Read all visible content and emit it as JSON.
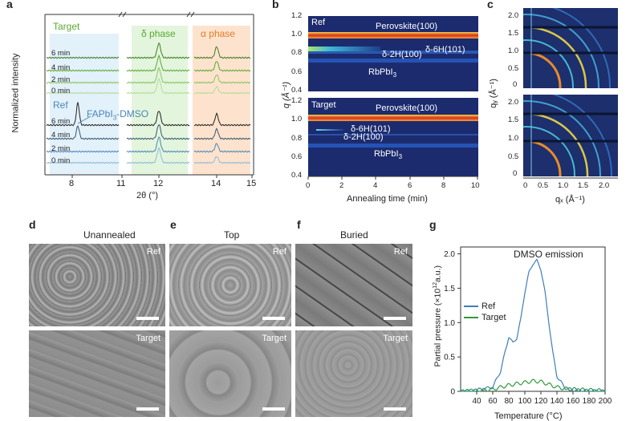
{
  "panels": {
    "a": "a",
    "b": "b",
    "c": "c",
    "d": "d",
    "e": "e",
    "f": "f",
    "g": "g"
  },
  "panel_a": {
    "target_label": "Target",
    "ref_label": "Ref",
    "delta_label": "δ phase",
    "alpha_label": "α phase",
    "fapbi_label": "FAPbI",
    "fapbi_sub": "3",
    "fapbi_suffix": "-DMSO",
    "ylabel": "Normalized intensity",
    "xlabel": "2θ (°)",
    "time_labels": [
      "6 min",
      "4 min",
      "2 min",
      "0 min"
    ],
    "xticks": [
      "8",
      "11",
      "12",
      "14",
      "15"
    ],
    "colors": {
      "target": "#5aa832",
      "ref": "#4a86b8",
      "delta_bg": "#e3f5dd",
      "alpha_bg": "#fde3cd",
      "blue_bg": "#e3f1fb",
      "alpha_text": "#e57b28",
      "delta_text": "#5aa832"
    }
  },
  "panel_b": {
    "ylabel": "q (Å⁻¹)",
    "xlabel": "Annealing time (min)",
    "xticks": [
      "0",
      "2",
      "4",
      "6",
      "8",
      "10"
    ],
    "yticks": [
      "1.2",
      "1.0",
      "0.8",
      "0.6",
      "0.4"
    ],
    "top": {
      "name": "Ref",
      "perovskite": "Perovskite(100)",
      "d6h": "δ-6H(101)",
      "d2h": "δ-2H(100)",
      "rbpbi_base": "RbPbI",
      "rbpbi_sub": "3"
    },
    "bottom": {
      "name": "Target",
      "perovskite": "Perovskite(100)",
      "d6h": "δ-6H(101)",
      "d2h": "δ-2H(100)",
      "rbpbi_base": "RbPbI",
      "rbpbi_sub": "3"
    }
  },
  "panel_c": {
    "ylabel": "qᵧ (Å⁻¹)",
    "xlabel": "qₓ (Å⁻¹)",
    "yticks": [
      "2.0",
      "1.5",
      "1.0",
      "0.5",
      "0"
    ],
    "xticks": [
      "0",
      "0.5",
      "1.0",
      "1.5",
      "2.0"
    ]
  },
  "sem": {
    "d_title": "Unannealed",
    "e_title": "Top",
    "f_title": "Buried",
    "ref": "Ref",
    "target": "Target"
  },
  "chart_data": {
    "type": "line",
    "title": "DMSO emission",
    "xlabel": "Temperature (°C)",
    "ylabel_main": "Partial pressure (×10",
    "ylabel_sup": "12",
    "ylabel_end": "a.u.)",
    "xlim": [
      20,
      200
    ],
    "ylim": [
      0,
      2.1
    ],
    "xticks": [
      40,
      60,
      80,
      100,
      120,
      140,
      160,
      180,
      200
    ],
    "yticks": [
      0,
      0.5,
      1.0,
      1.5,
      2.0
    ],
    "legend_placement": "left",
    "series": [
      {
        "name": "Ref",
        "color": "#3f7fb8",
        "x": [
          20,
          40,
          60,
          70,
          75,
          80,
          85,
          90,
          95,
          100,
          105,
          110,
          115,
          120,
          125,
          130,
          135,
          140,
          150,
          160,
          180,
          200
        ],
        "y": [
          0.0,
          0.02,
          0.06,
          0.3,
          0.55,
          0.8,
          0.7,
          0.78,
          1.05,
          1.45,
          1.72,
          1.86,
          1.9,
          1.78,
          1.45,
          1.0,
          0.55,
          0.22,
          0.05,
          0.02,
          0.01,
          0.0
        ]
      },
      {
        "name": "Target",
        "color": "#2e9a3a",
        "x": [
          20,
          40,
          60,
          70,
          80,
          90,
          100,
          110,
          120,
          130,
          140,
          150,
          160,
          180,
          200
        ],
        "y": [
          0.0,
          0.01,
          0.03,
          0.06,
          0.09,
          0.11,
          0.13,
          0.15,
          0.14,
          0.1,
          0.06,
          0.04,
          0.03,
          0.02,
          0.01
        ]
      }
    ]
  }
}
